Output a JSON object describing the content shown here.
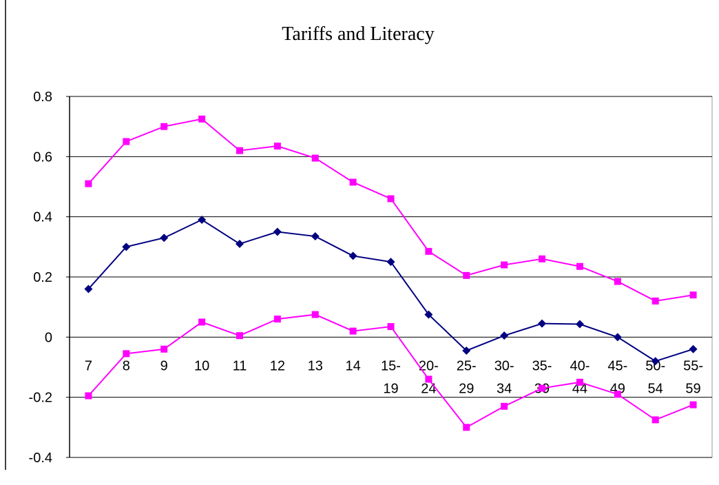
{
  "chart_data": {
    "type": "line",
    "title": "Tariffs and Literacy",
    "categories": [
      "7",
      "8",
      "9",
      "10",
      "11",
      "12",
      "13",
      "14",
      "15-19",
      "20-24",
      "25-29",
      "30-34",
      "35-39",
      "40-44",
      "45-49",
      "50-54",
      "55-59"
    ],
    "series": [
      {
        "color": "#ff00ff",
        "marker": "square",
        "values": [
          0.51,
          0.65,
          0.7,
          0.725,
          0.62,
          0.635,
          0.595,
          0.515,
          0.46,
          0.285,
          0.205,
          0.24,
          0.26,
          0.235,
          0.185,
          0.12,
          0.14
        ]
      },
      {
        "color": "#000080",
        "marker": "diamond",
        "values": [
          0.16,
          0.3,
          0.33,
          0.39,
          0.31,
          0.35,
          0.335,
          0.27,
          0.25,
          0.075,
          -0.045,
          0.005,
          0.045,
          0.043,
          0.0,
          -0.08,
          -0.04
        ]
      },
      {
        "color": "#ff00ff",
        "marker": "square",
        "values": [
          -0.195,
          -0.055,
          -0.04,
          0.05,
          0.005,
          0.06,
          0.075,
          0.02,
          0.035,
          -0.14,
          -0.3,
          -0.23,
          -0.17,
          -0.15,
          -0.19,
          -0.275,
          -0.225
        ]
      }
    ],
    "ylim": [
      -0.4,
      0.8
    ],
    "yticks": [
      -0.4,
      -0.2,
      0,
      0.2,
      0.4,
      0.6,
      0.8
    ],
    "grid": true
  }
}
